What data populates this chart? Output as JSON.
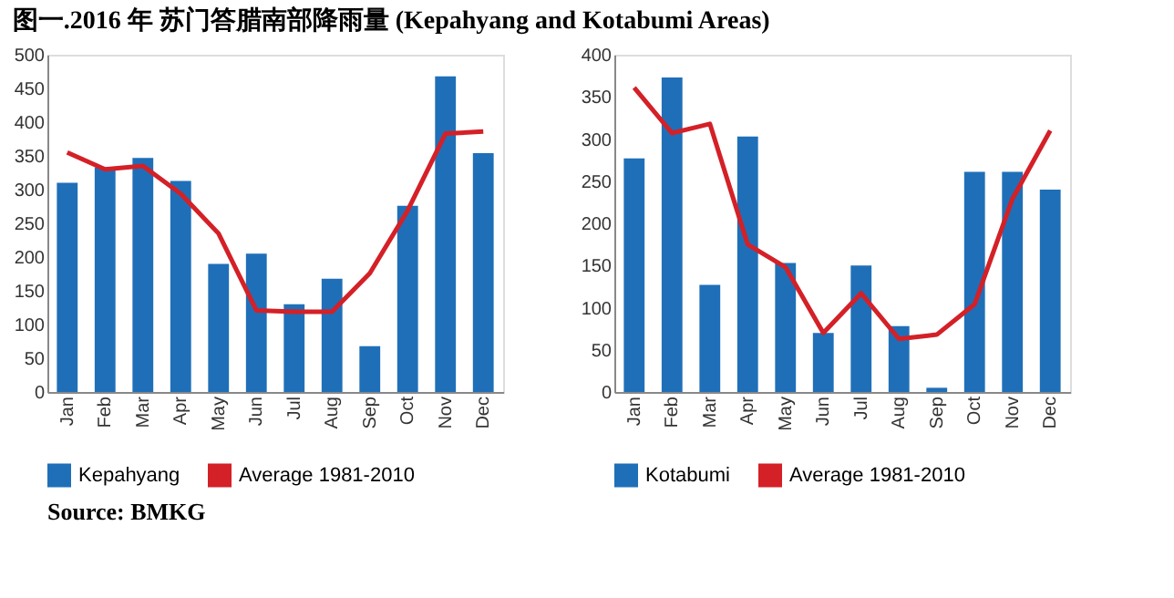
{
  "chart_data": [
    {
      "type": "bar",
      "title": "图一.2016 年 苏门答腊南部降雨量 (Kepahyang and Kotabumi Areas)",
      "annotations": [
        "Source: BMKG"
      ],
      "categories": [
        "Jan",
        "Feb",
        "Mar",
        "Apr",
        "May",
        "Jun",
        "Jul",
        "Aug",
        "Sep",
        "Oct",
        "Nov",
        "Dec"
      ],
      "series": [
        {
          "name": "Kepahyang",
          "color": "#1f6fb8",
          "values": [
            310,
            333,
            347,
            313,
            190,
            205,
            130,
            168,
            68,
            276,
            468,
            354
          ]
        },
        {
          "name": "Average 1981-2010",
          "type": "line",
          "color": "#d42027",
          "values": [
            355,
            330,
            335,
            294,
            235,
            121,
            119,
            119,
            176,
            269,
            383,
            386
          ]
        }
      ],
      "ylim": [
        0,
        500
      ],
      "yticks": [
        0,
        50,
        100,
        150,
        200,
        250,
        300,
        350,
        400,
        450,
        500
      ],
      "grid": false,
      "legend": "bottom"
    },
    {
      "type": "bar",
      "categories": [
        "Jan",
        "Feb",
        "Mar",
        "Apr",
        "May",
        "Jun",
        "Jul",
        "Aug",
        "Sep",
        "Oct",
        "Nov",
        "Dec"
      ],
      "series": [
        {
          "name": "Kotabumi",
          "color": "#1f6fb8",
          "values": [
            277,
            373,
            127,
            303,
            153,
            70,
            150,
            78,
            5,
            261,
            261,
            240
          ]
        },
        {
          "name": "Average 1981-2010",
          "type": "line",
          "color": "#d42027",
          "values": [
            361,
            307,
            318,
            175,
            148,
            70,
            117,
            63,
            68,
            104,
            229,
            310
          ]
        }
      ],
      "ylim": [
        0,
        400
      ],
      "yticks": [
        0,
        50,
        100,
        150,
        200,
        250,
        300,
        350,
        400
      ],
      "grid": false,
      "legend": "bottom"
    }
  ]
}
